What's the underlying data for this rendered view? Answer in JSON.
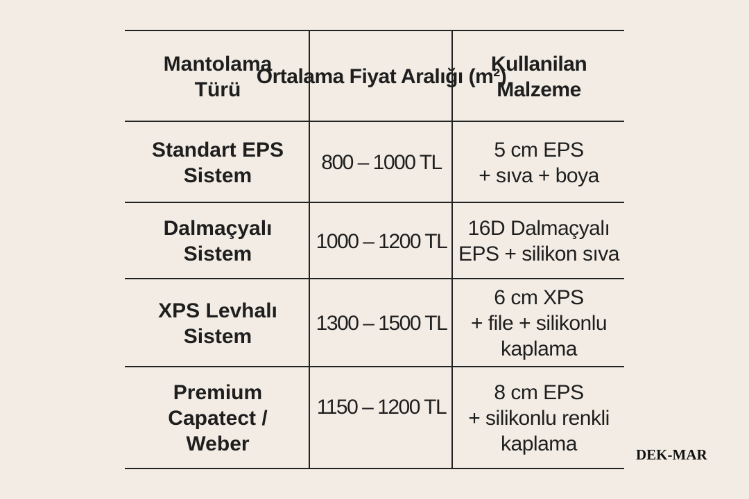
{
  "table": {
    "headers": [
      "Mantolama\nTürü",
      "Ortalama\nFiyat Aralığı\n(m²)",
      "Kullanilan\nMalzeme"
    ],
    "rows": [
      [
        "Standart EPS\nSistem",
        "800 – 1000 TL",
        "5 cm EPS\n+ sıva + boya"
      ],
      [
        "Dalmaçyalı\nSistem",
        "1000 – 1200 TL",
        "16D Dalmaçyalı\nEPS + silikon sıva"
      ],
      [
        "XPS Levhalı\nSistem",
        "1300 – 1500 TL",
        "6 cm XPS\n+ file + silikonlu\nkaplama"
      ],
      [
        "Premium\nCapatect /\nWeber",
        "1150 – 1200 TL",
        "8 cm EPS\n+ silikonlu renkli\nkaplama"
      ]
    ]
  },
  "watermark": "DEK-MAR",
  "colors": {
    "background": "#f2ece4",
    "lines": "#222222",
    "text": "#1e1e1e"
  }
}
